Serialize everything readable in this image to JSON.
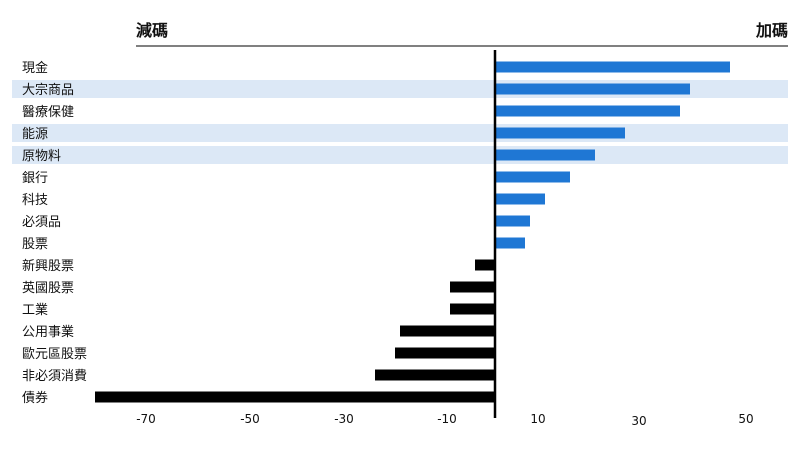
{
  "chart_data": {
    "type": "bar",
    "orientation": "horizontal",
    "left_header": "減碼",
    "right_header": "加碼",
    "categories": [
      "現金",
      "大宗商品",
      "醫療保健",
      "能源",
      "原物料",
      "銀行",
      "科技",
      "必須品",
      "股票",
      "新興股票",
      "英國股票",
      "工業",
      "公用事業",
      "歐元區股票",
      "非必須消費",
      "債券"
    ],
    "values": [
      47,
      39,
      37,
      26,
      20,
      15,
      10,
      7,
      6,
      -4,
      -9,
      -9,
      -19,
      -20,
      -24,
      -80
    ],
    "highlighted": [
      "大宗商品",
      "能源",
      "原物料"
    ],
    "x_ticks": [
      "-70",
      "-50",
      "-30",
      "-10",
      "10",
      "30",
      "50"
    ],
    "colors": {
      "positive": "#1f77d4",
      "negative": "#000000",
      "highlight": "#dce8f6"
    }
  }
}
